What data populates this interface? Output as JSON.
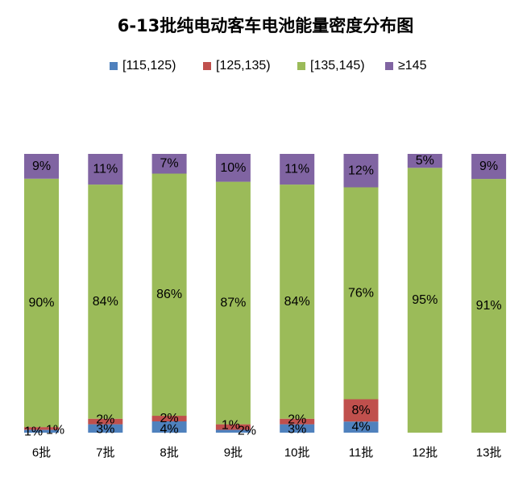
{
  "chart_data": {
    "type": "bar",
    "stacked": true,
    "title": "6-13批纯电动客车电池能量密度分布图",
    "categories": [
      "6批",
      "7批",
      "8批",
      "9批",
      "10批",
      "11批",
      "12批",
      "13批"
    ],
    "series": [
      {
        "name": "[115,125)",
        "color": "#4f81bd",
        "values": [
          1,
          3,
          4,
          1,
          3,
          4,
          0,
          0
        ],
        "labels": [
          "1%",
          "3%",
          "4%",
          "1%",
          "3%",
          "4%",
          "",
          ""
        ]
      },
      {
        "name": "[125,135)",
        "color": "#c0504d",
        "values": [
          1,
          2,
          2,
          2,
          2,
          8,
          0,
          0
        ],
        "labels": [
          "1%",
          "2%",
          "2%",
          "2%",
          "2%",
          "8%",
          "",
          ""
        ]
      },
      {
        "name": "[135,145)",
        "color": "#9bbb59",
        "values": [
          90,
          84,
          86,
          87,
          84,
          76,
          95,
          91
        ],
        "labels": [
          "90%",
          "84%",
          "86%",
          "87%",
          "84%",
          "76%",
          "95%",
          "91%"
        ]
      },
      {
        "name": "≥145",
        "color": "#8064a2",
        "values": [
          9,
          11,
          7,
          10,
          11,
          12,
          5,
          9
        ],
        "labels": [
          "9%",
          "11%",
          "7%",
          "10%",
          "11%",
          "12%",
          "5%",
          "9%"
        ]
      }
    ],
    "ylim": [
      0,
      100
    ],
    "grid": false,
    "legend_position": "top"
  }
}
